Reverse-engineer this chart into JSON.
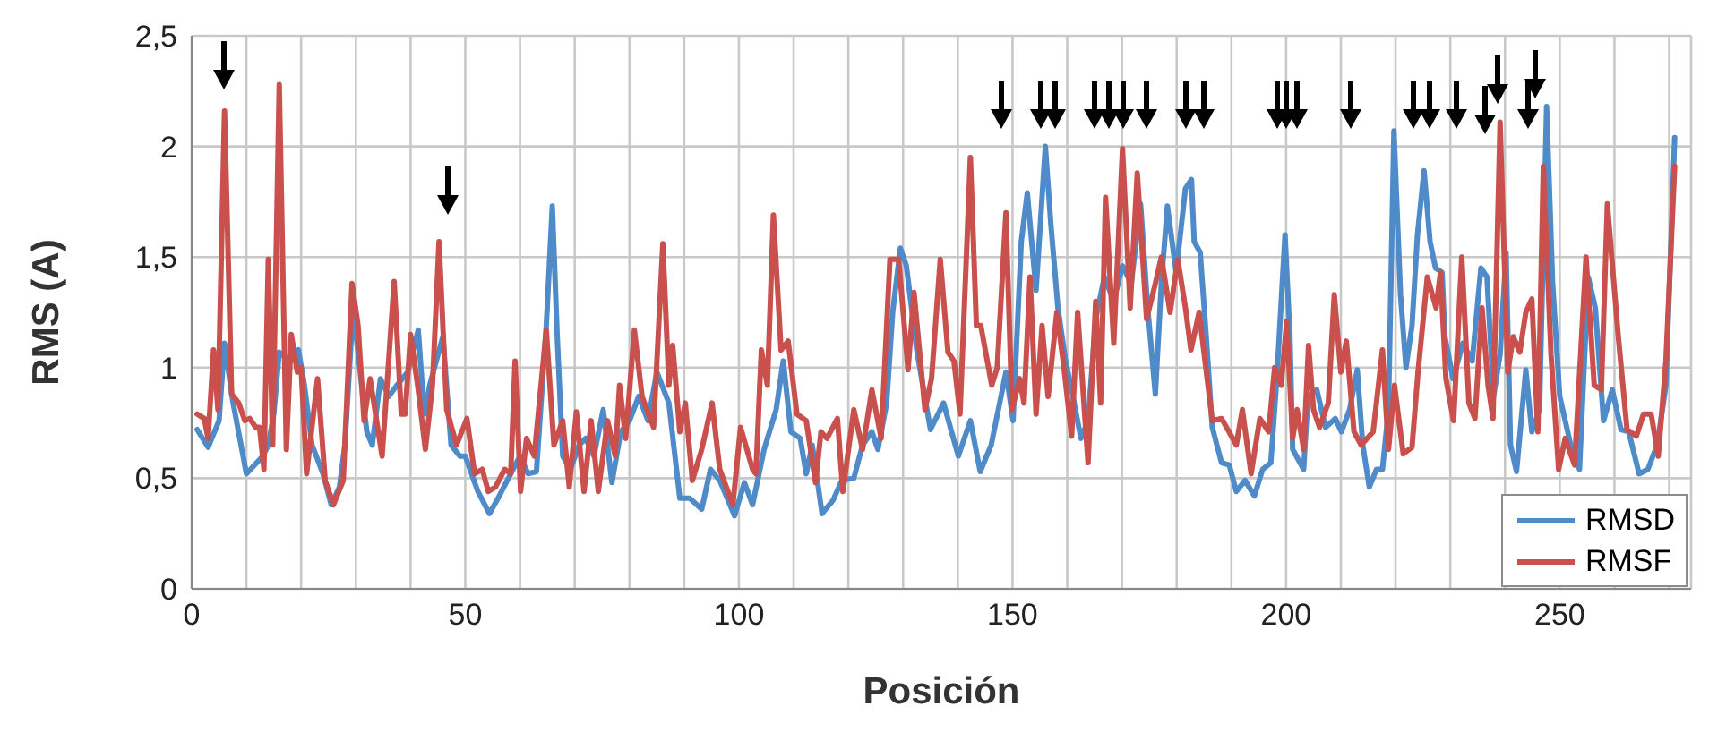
{
  "chart_data": {
    "type": "line",
    "xlabel": "Posición",
    "ylabel": "RMS (A)",
    "xlim": [
      0,
      274
    ],
    "xticks": [
      0,
      {
        "value": 10,
        "label": null
      },
      {
        "value": 20,
        "label": null
      },
      {
        "value": 30,
        "label": null
      },
      {
        "value": 40,
        "label": null
      },
      50,
      {
        "value": 60,
        "label": null
      },
      {
        "value": 70,
        "label": null
      },
      {
        "value": 80,
        "label": null
      },
      {
        "value": 90,
        "label": null
      },
      100,
      {
        "value": 110,
        "label": null
      },
      {
        "value": 120,
        "label": null
      },
      {
        "value": 130,
        "label": null
      },
      {
        "value": 140,
        "label": null
      },
      150,
      {
        "value": 160,
        "label": null
      },
      {
        "value": 170,
        "label": null
      },
      {
        "value": 180,
        "label": null
      },
      {
        "value": 190,
        "label": null
      },
      200,
      {
        "value": 210,
        "label": null
      },
      {
        "value": 220,
        "label": null
      },
      {
        "value": 230,
        "label": null
      },
      {
        "value": 240,
        "label": null
      },
      250,
      {
        "value": 260,
        "label": null
      },
      {
        "value": 270,
        "label": null
      }
    ],
    "ylim": [
      0,
      2.5
    ],
    "yticks": [
      0,
      {
        "value": 0.5,
        "label": "0,5"
      },
      1,
      {
        "value": 1.5,
        "label": "1,5"
      },
      2,
      {
        "value": 2.5,
        "label": "2,5"
      }
    ],
    "grid": true,
    "legend": "bottom right",
    "marker": "none",
    "line_style": "solid",
    "series": [
      {
        "name": "RMSD",
        "color": "#4f8ac9",
        "x": [
          1,
          3,
          5,
          6,
          7.5,
          10,
          13,
          14,
          15,
          16,
          18,
          19.5,
          20.6,
          22,
          24,
          25.5,
          27,
          28,
          29.5,
          32,
          33,
          34.5,
          36,
          37.5,
          39.5,
          41.4,
          42.5,
          43.5,
          45.9,
          47.4,
          49,
          50,
          52.3,
          54.4,
          56,
          58.3,
          60,
          61.5,
          63,
          64.8,
          65.9,
          66.8,
          67.8,
          69.2,
          70.8,
          72,
          73.5,
          75.2,
          76.8,
          78.4,
          80,
          81.7,
          83.4,
          85,
          87.2,
          89.2,
          91,
          93.2,
          94.8,
          96.5,
          99.2,
          101,
          102.5,
          104.6,
          106.8,
          108.1,
          109.5,
          111.2,
          112.3,
          113.4,
          115.2,
          117.2,
          118.8,
          121,
          122.6,
          124.3,
          125.4,
          127,
          128.1,
          129.5,
          130.6,
          132.5,
          135,
          137.4,
          140.1,
          142.3,
          144.1,
          146.1,
          148.8,
          150.1,
          151.6,
          152.7,
          154.3,
          156,
          157,
          158.3,
          159.7,
          160.8,
          162.5,
          163.8,
          165.2,
          166.8,
          168.5,
          170.1,
          171.7,
          173.4,
          174.7,
          176.1,
          177.2,
          178.3,
          179.9,
          181.6,
          182.7,
          183.2,
          184.3,
          185.4,
          186.5,
          188.2,
          189.6,
          190.9,
          192.5,
          194.2,
          195.7,
          197.2,
          198.3,
          199.8,
          200.7,
          201.2,
          203.2,
          204,
          205.6,
          207.2,
          209,
          210.1,
          211.6,
          213,
          214,
          215.2,
          216.5,
          217.6,
          218.7,
          219.7,
          220.9,
          221.9,
          223,
          224,
          225.2,
          226.3,
          227.3,
          228.5,
          229,
          230.5,
          232.3,
          234,
          235.6,
          236.7,
          237.9,
          239.1,
          240.2,
          241,
          242.1,
          243.8,
          244.9,
          246.3,
          247.6,
          248.7,
          250,
          252,
          253.6,
          255.2,
          256.5,
          258,
          259.6,
          261.2,
          262.6,
          264.5,
          266.1,
          267.8,
          269.4,
          271
        ],
        "values": [
          0.72,
          0.64,
          0.76,
          1.11,
          0.85,
          0.52,
          0.6,
          0.65,
          0.79,
          1.07,
          1.03,
          1.08,
          0.92,
          0.65,
          0.52,
          0.38,
          0.46,
          0.65,
          1.27,
          0.71,
          0.65,
          0.95,
          0.87,
          0.92,
          0.98,
          1.17,
          0.79,
          0.92,
          1.14,
          0.65,
          0.6,
          0.6,
          0.44,
          0.34,
          0.41,
          0.52,
          0.6,
          0.52,
          0.53,
          1.19,
          1.73,
          1.14,
          0.6,
          0.54,
          0.65,
          0.68,
          0.6,
          0.81,
          0.48,
          0.71,
          0.76,
          0.87,
          0.76,
          0.98,
          0.84,
          0.41,
          0.41,
          0.36,
          0.54,
          0.49,
          0.33,
          0.48,
          0.38,
          0.63,
          0.81,
          1.03,
          0.71,
          0.68,
          0.52,
          0.65,
          0.34,
          0.4,
          0.49,
          0.5,
          0.65,
          0.71,
          0.63,
          0.84,
          1.25,
          1.54,
          1.46,
          1.08,
          0.72,
          0.84,
          0.6,
          0.76,
          0.53,
          0.65,
          0.98,
          0.76,
          1.57,
          1.79,
          1.35,
          2.0,
          1.65,
          1.27,
          1.03,
          0.9,
          0.68,
          0.76,
          1.22,
          1.41,
          1.3,
          1.46,
          1.38,
          1.74,
          1.27,
          0.88,
          1.38,
          1.73,
          1.43,
          1.81,
          1.85,
          1.57,
          1.52,
          1.14,
          0.73,
          0.57,
          0.56,
          0.44,
          0.49,
          0.42,
          0.54,
          0.57,
          0.95,
          1.6,
          1.14,
          0.63,
          0.54,
          0.87,
          0.9,
          0.73,
          0.77,
          0.71,
          0.81,
          0.99,
          0.65,
          0.46,
          0.54,
          0.54,
          0.81,
          2.07,
          1.33,
          1.0,
          1.19,
          1.6,
          1.89,
          1.57,
          1.45,
          1.43,
          1.14,
          0.95,
          1.11,
          1.03,
          1.45,
          1.41,
          0.87,
          1.06,
          1.52,
          0.65,
          0.53,
          0.99,
          0.71,
          0.81,
          2.18,
          1.38,
          0.87,
          0.65,
          0.54,
          1.41,
          1.27,
          0.76,
          0.9,
          0.72,
          0.71,
          0.52,
          0.54,
          0.65,
          0.92,
          2.04
        ]
      },
      {
        "name": "RMSF",
        "color": "#c9504d",
        "x": [
          1,
          2.3,
          3,
          4,
          4.8,
          6,
          7.3,
          8.6,
          9.7,
          10.6,
          11.7,
          12.4,
          13.2,
          14,
          14.8,
          16,
          17.3,
          18.2,
          19.3,
          20,
          21,
          23,
          24.4,
          25.9,
          27.7,
          29.3,
          30.4,
          31.5,
          32.6,
          34.8,
          37,
          38.3,
          39,
          40,
          41.4,
          42.7,
          44,
          45.2,
          46.6,
          48.4,
          50.3,
          51.7,
          53.1,
          54.2,
          55.5,
          57.2,
          58.3,
          59.1,
          60.1,
          61.2,
          62.6,
          64.8,
          66.2,
          67.8,
          69,
          70.3,
          71.7,
          73,
          74.3,
          76,
          77.4,
          78.2,
          79.3,
          80.9,
          82.3,
          84.4,
          86.1,
          87.2,
          87.9,
          89.2,
          90.2,
          91.5,
          93.2,
          95.1,
          96.5,
          98.9,
          100.3,
          102.5,
          103.1,
          104.1,
          105.2,
          106.3,
          107.7,
          109,
          110.6,
          112.3,
          114,
          115,
          116.1,
          118,
          119,
          121,
          122.6,
          124.3,
          126,
          127.6,
          129.2,
          130.9,
          132,
          134,
          135.2,
          136.8,
          138.2,
          139.3,
          140.4,
          142.3,
          143.4,
          144.2,
          146.2,
          147.2,
          148.8,
          149.9,
          151.3,
          152.1,
          153.2,
          154.3,
          155.4,
          156.5,
          158.1,
          159.4,
          160.8,
          161.9,
          163.8,
          165.2,
          166.1,
          167,
          168.5,
          170.1,
          171.5,
          172.8,
          174.5,
          176.1,
          177.2,
          178.8,
          180.2,
          181.6,
          182.6,
          184.1,
          186.5,
          188.2,
          190.9,
          192,
          193.6,
          195.2,
          196.8,
          197.9,
          199.1,
          200.1,
          201.2,
          202,
          203.2,
          204.1,
          205,
          206.1,
          207.7,
          208.8,
          210,
          211,
          212.4,
          213.7,
          215.9,
          217.6,
          218.7,
          219.8,
          221.4,
          223,
          224.1,
          225.8,
          227.4,
          228.2,
          229.2,
          230.6,
          232.1,
          233.4,
          234.5,
          235.8,
          236.9,
          237.8,
          239.1,
          240.5,
          241.5,
          242.7,
          243.8,
          244.9,
          246,
          247,
          248.4,
          249.8,
          251,
          252.7,
          254.8,
          256.3,
          257.6,
          258.7,
          260.7,
          262.3,
          264,
          265.3,
          266.7,
          268,
          269.4,
          271
        ],
        "values": [
          0.79,
          0.77,
          0.68,
          1.08,
          0.81,
          2.16,
          0.88,
          0.84,
          0.76,
          0.77,
          0.73,
          0.73,
          0.54,
          1.49,
          0.65,
          2.28,
          0.63,
          1.15,
          0.98,
          1.0,
          0.52,
          0.95,
          0.49,
          0.38,
          0.49,
          1.38,
          1.19,
          0.76,
          0.95,
          0.6,
          1.39,
          0.79,
          0.79,
          1.15,
          0.9,
          0.63,
          0.92,
          1.57,
          0.81,
          0.65,
          0.77,
          0.52,
          0.54,
          0.44,
          0.46,
          0.54,
          0.52,
          1.03,
          0.44,
          0.68,
          0.6,
          1.17,
          0.65,
          0.76,
          0.46,
          0.8,
          0.44,
          0.76,
          0.44,
          0.76,
          0.6,
          0.92,
          0.68,
          1.17,
          0.87,
          0.73,
          1.56,
          0.92,
          1.1,
          0.71,
          0.84,
          0.49,
          0.63,
          0.84,
          0.54,
          0.38,
          0.73,
          0.54,
          0.52,
          1.08,
          0.92,
          1.69,
          1.08,
          1.12,
          0.79,
          0.76,
          0.48,
          0.71,
          0.68,
          0.77,
          0.44,
          0.81,
          0.63,
          0.9,
          0.68,
          1.49,
          1.49,
          0.99,
          1.34,
          0.81,
          0.95,
          1.49,
          1.07,
          1.03,
          0.79,
          1.95,
          1.19,
          1.19,
          0.92,
          1.0,
          1.7,
          0.81,
          0.95,
          0.84,
          1.41,
          0.79,
          1.19,
          0.87,
          1.25,
          1.0,
          0.69,
          1.25,
          0.57,
          1.3,
          0.84,
          1.77,
          1.11,
          1.99,
          1.27,
          1.88,
          1.22,
          1.38,
          1.5,
          1.25,
          1.49,
          1.27,
          1.08,
          1.25,
          0.76,
          0.77,
          0.65,
          0.81,
          0.52,
          0.77,
          0.71,
          1.0,
          0.92,
          1.21,
          0.68,
          0.81,
          0.63,
          1.1,
          0.81,
          0.73,
          0.84,
          1.33,
          0.98,
          1.12,
          0.71,
          0.65,
          0.71,
          1.08,
          0.63,
          0.92,
          0.61,
          0.64,
          0.98,
          1.41,
          1.27,
          1.43,
          0.95,
          0.76,
          1.5,
          0.84,
          0.77,
          1.27,
          0.92,
          0.77,
          2.11,
          0.98,
          1.14,
          1.07,
          1.25,
          1.31,
          0.71,
          1.91,
          1.06,
          0.54,
          0.68,
          0.56,
          1.5,
          0.92,
          0.9,
          1.74,
          1.14,
          0.72,
          0.69,
          0.79,
          0.79,
          0.6,
          1.03,
          1.91
        ]
      }
    ]
  }
}
